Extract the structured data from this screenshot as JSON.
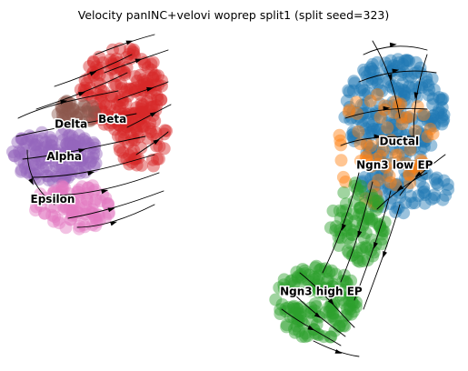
{
  "chart_data": {
    "type": "scatter",
    "title": "Velocity panINC+velovi woprep split1 (split seed=323)",
    "xlabel": "",
    "ylabel": "",
    "axes": "off",
    "grid": false,
    "legend": "on data",
    "point_alpha": 0.45,
    "clusters": [
      {
        "name": "Beta",
        "color": "#d62728",
        "label_x": 0.235,
        "label_y": 0.285
      },
      {
        "name": "Delta",
        "color": "#8c564b",
        "label_x": 0.145,
        "label_y": 0.3
      },
      {
        "name": "Alpha",
        "color": "#9467bd",
        "label_x": 0.13,
        "label_y": 0.395
      },
      {
        "name": "Epsilon",
        "color": "#e377c2",
        "label_x": 0.105,
        "label_y": 0.52
      },
      {
        "name": "Ductal",
        "color": "#1f77b4",
        "label_x": 0.86,
        "label_y": 0.35
      },
      {
        "name": "Ngn3 low EP",
        "color": "#ff7f0e",
        "label_x": 0.85,
        "label_y": 0.42
      },
      {
        "name": "Ngn3 high EP",
        "color": "#2ca02c",
        "label_x": 0.69,
        "label_y": 0.79
      }
    ],
    "regions": [
      {
        "cluster": "Beta",
        "cx": 0.255,
        "cy": 0.19,
        "rx": 0.09,
        "ry": 0.13,
        "n": 180
      },
      {
        "cluster": "Beta",
        "cx": 0.3,
        "cy": 0.33,
        "rx": 0.06,
        "ry": 0.09,
        "n": 70
      },
      {
        "cluster": "Delta",
        "cx": 0.155,
        "cy": 0.255,
        "rx": 0.045,
        "ry": 0.04,
        "n": 35
      },
      {
        "cluster": "Alpha",
        "cx": 0.11,
        "cy": 0.38,
        "rx": 0.095,
        "ry": 0.08,
        "n": 150
      },
      {
        "cluster": "Epsilon",
        "cx": 0.15,
        "cy": 0.53,
        "rx": 0.085,
        "ry": 0.07,
        "n": 90
      },
      {
        "cluster": "Ductal",
        "cx": 0.85,
        "cy": 0.25,
        "rx": 0.11,
        "ry": 0.16,
        "n": 230
      },
      {
        "cluster": "Ductal",
        "cx": 0.87,
        "cy": 0.48,
        "rx": 0.1,
        "ry": 0.07,
        "n": 80
      },
      {
        "cluster": "Ngn3 low EP",
        "cx": 0.83,
        "cy": 0.36,
        "rx": 0.11,
        "ry": 0.17,
        "n": 70
      },
      {
        "cluster": "Ngn3 high EP",
        "cx": 0.77,
        "cy": 0.58,
        "rx": 0.06,
        "ry": 0.12,
        "n": 90
      },
      {
        "cluster": "Ngn3 high EP",
        "cx": 0.68,
        "cy": 0.81,
        "rx": 0.09,
        "ry": 0.11,
        "n": 150
      }
    ]
  }
}
